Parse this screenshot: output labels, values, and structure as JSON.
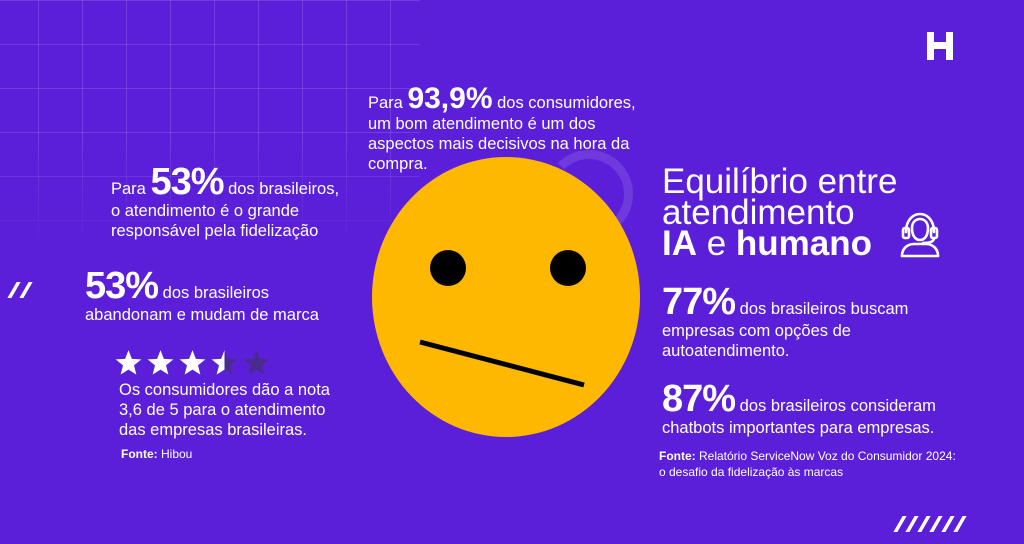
{
  "colors": {
    "background": "#5b1fd9",
    "face": "#ffb800",
    "text": "#ffffff"
  },
  "logo": {
    "icon": "h-logo-icon"
  },
  "top_stat": {
    "prefix": "Para ",
    "value": "93,9%",
    "line1": " dos consumidores,",
    "line2": "um bom atendimento é um dos",
    "line3": "aspectos mais decisivos na hora da",
    "line4": "compra."
  },
  "loyalty_stat": {
    "prefix": "Para ",
    "value": "53%",
    "line1": " dos brasileiros,",
    "line2": "o atendimento é o grande",
    "line3": "responsável pela fidelização"
  },
  "abandon_stat": {
    "value": "53%",
    "line1": " dos brasileiros",
    "line2": "abandonam e mudam de marca"
  },
  "rating": {
    "score": 3.6,
    "max": 5,
    "line1": "Os consumidores dão a nota",
    "line2": "3,6 de 5 para o atendimento",
    "line3": "das empresas brasileiras.",
    "source_label": "Fonte:",
    "source_value": " Hibou"
  },
  "headline": {
    "line1": "Equilíbrio entre",
    "line2": "atendimento",
    "line3_bold1": "IA",
    "line3_mid": " e ",
    "line3_bold2": "humano",
    "icon": "customer-service-agent-icon"
  },
  "self_service_stat": {
    "value": "77%",
    "line1": " dos brasileiros buscam",
    "line2": "empresas com opções de",
    "line3": "autoatendimento."
  },
  "chatbot_stat": {
    "value": "87%",
    "line1": " dos brasileiros consideram",
    "line2": "chatbots importantes para empresas."
  },
  "right_source": {
    "label": "Fonte:",
    "line1": " Relatório ServiceNow Voz do Consumidor 2024:",
    "line2": "o desafio da fidelização às marcas"
  },
  "face": {
    "icon": "neutral-face-emoji"
  }
}
